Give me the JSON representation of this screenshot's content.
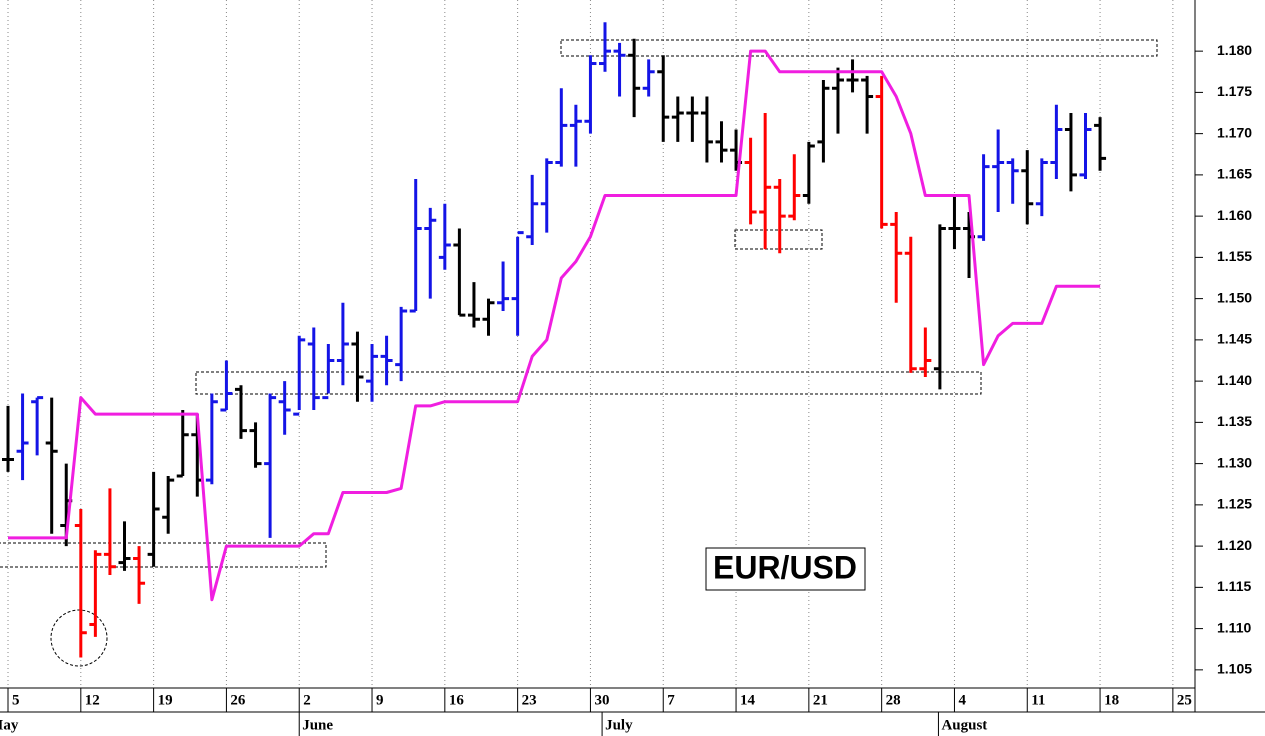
{
  "chart_data": {
    "type": "ohlc",
    "label": "EUR/USD",
    "x": [
      0,
      1,
      2,
      3,
      4,
      5,
      6,
      7,
      8,
      9,
      10,
      11,
      12,
      13,
      14,
      15,
      16,
      17,
      18,
      19,
      20,
      21,
      22,
      23,
      24,
      25,
      26,
      27,
      28,
      29,
      30,
      31,
      32,
      33,
      34,
      35,
      36,
      37,
      38,
      39,
      40,
      41,
      42,
      43,
      44,
      45,
      46,
      47,
      48,
      49,
      50,
      51,
      52,
      53,
      54,
      55,
      56,
      57,
      58,
      59,
      60,
      61,
      62,
      63,
      64,
      65,
      66,
      67,
      68,
      69,
      70,
      71,
      72,
      73,
      74,
      75
    ],
    "open": [
      1.1305,
      1.1315,
      1.1375,
      1.1325,
      1.1225,
      1.1225,
      1.1105,
      1.119,
      1.118,
      1.1185,
      1.119,
      1.1235,
      1.1285,
      1.1335,
      1.128,
      1.1365,
      1.139,
      1.134,
      1.13,
      1.1375,
      1.136,
      1.1445,
      1.138,
      1.1425,
      1.1445,
      1.14,
      1.143,
      1.142,
      1.1485,
      1.1585,
      1.155,
      1.1565,
      1.148,
      1.1475,
      1.1495,
      1.15,
      1.1575,
      1.1615,
      1.1665,
      1.171,
      1.1715,
      1.1785,
      1.18,
      1.1795,
      1.1755,
      1.1775,
      1.172,
      1.1725,
      1.1725,
      1.169,
      1.168,
      1.1665,
      1.1605,
      1.1635,
      1.16,
      1.1625,
      1.169,
      1.1755,
      1.1765,
      1.1765,
      1.1745,
      1.159,
      1.1555,
      1.1415,
      1.1415,
      1.1585,
      1.1585,
      1.1575,
      1.166,
      1.1665,
      1.1655,
      1.1615,
      1.1665,
      1.1705,
      1.165,
      1.171
    ],
    "high": [
      1.137,
      1.1385,
      1.138,
      1.138,
      1.13,
      1.1245,
      1.1195,
      1.127,
      1.123,
      1.12,
      1.129,
      1.1285,
      1.1365,
      1.136,
      1.1385,
      1.1425,
      1.1395,
      1.135,
      1.1385,
      1.14,
      1.1455,
      1.1465,
      1.1445,
      1.1495,
      1.146,
      1.1445,
      1.1455,
      1.149,
      1.1645,
      1.161,
      1.1615,
      1.1585,
      1.152,
      1.15,
      1.1545,
      1.1575,
      1.165,
      1.167,
      1.1755,
      1.1735,
      1.1795,
      1.1835,
      1.181,
      1.1815,
      1.179,
      1.1795,
      1.1745,
      1.1745,
      1.1745,
      1.1715,
      1.1705,
      1.1695,
      1.1725,
      1.1645,
      1.1675,
      1.169,
      1.1765,
      1.178,
      1.179,
      1.177,
      1.177,
      1.1605,
      1.1575,
      1.1465,
      1.159,
      1.1625,
      1.1605,
      1.1675,
      1.1705,
      1.167,
      1.168,
      1.167,
      1.1735,
      1.1725,
      1.1725,
      1.172
    ],
    "low": [
      1.129,
      1.128,
      1.131,
      1.1215,
      1.12,
      1.1065,
      1.109,
      1.1165,
      1.117,
      1.113,
      1.1175,
      1.1215,
      1.1285,
      1.126,
      1.1275,
      1.1365,
      1.133,
      1.1295,
      1.121,
      1.1335,
      1.1365,
      1.1365,
      1.1385,
      1.1395,
      1.1375,
      1.1375,
      1.1395,
      1.14,
      1.1485,
      1.15,
      1.1535,
      1.148,
      1.1465,
      1.1455,
      1.1485,
      1.1455,
      1.1565,
      1.158,
      1.166,
      1.166,
      1.17,
      1.1775,
      1.1745,
      1.172,
      1.1745,
      1.169,
      1.169,
      1.169,
      1.1665,
      1.1665,
      1.1655,
      1.159,
      1.156,
      1.1555,
      1.1595,
      1.1615,
      1.1665,
      1.17,
      1.175,
      1.17,
      1.1585,
      1.1495,
      1.141,
      1.1405,
      1.139,
      1.156,
      1.1525,
      1.157,
      1.1605,
      1.1615,
      1.159,
      1.16,
      1.1645,
      1.163,
      1.1645,
      1.1655
    ],
    "close": [
      1.1305,
      1.1325,
      1.138,
      1.1315,
      1.1255,
      1.1095,
      1.119,
      1.1175,
      1.1185,
      1.1155,
      1.1245,
      1.128,
      1.1335,
      1.128,
      1.1375,
      1.1385,
      1.134,
      1.13,
      1.138,
      1.1365,
      1.145,
      1.138,
      1.1425,
      1.1445,
      1.1405,
      1.143,
      1.1425,
      1.1485,
      1.1585,
      1.1595,
      1.1565,
      1.148,
      1.1475,
      1.1495,
      1.15,
      1.158,
      1.1615,
      1.1665,
      1.171,
      1.1715,
      1.1785,
      1.18,
      1.1795,
      1.1755,
      1.1775,
      1.172,
      1.1725,
      1.1725,
      1.169,
      1.168,
      1.1665,
      1.1605,
      1.1635,
      1.16,
      1.1625,
      1.1685,
      1.1755,
      1.1765,
      1.1765,
      1.1745,
      1.159,
      1.1555,
      1.1415,
      1.1425,
      1.1585,
      1.1585,
      1.1575,
      1.166,
      1.1665,
      1.1655,
      1.1615,
      1.1665,
      1.1705,
      1.165,
      1.1705,
      1.167
    ],
    "colors": [
      "#000000",
      "#1414e6",
      "#1414e6",
      "#000000",
      "#000000",
      "#ff0000",
      "#ff0000",
      "#ff0000",
      "#000000",
      "#ff0000",
      "#000000",
      "#000000",
      "#000000",
      "#000000",
      "#1414e6",
      "#1414e6",
      "#000000",
      "#000000",
      "#1414e6",
      "#1414e6",
      "#1414e6",
      "#1414e6",
      "#1414e6",
      "#1414e6",
      "#000000",
      "#1414e6",
      "#1414e6",
      "#1414e6",
      "#1414e6",
      "#1414e6",
      "#1414e6",
      "#000000",
      "#000000",
      "#000000",
      "#1414e6",
      "#1414e6",
      "#1414e6",
      "#1414e6",
      "#1414e6",
      "#1414e6",
      "#1414e6",
      "#1414e6",
      "#1414e6",
      "#000000",
      "#1414e6",
      "#000000",
      "#000000",
      "#000000",
      "#000000",
      "#000000",
      "#000000",
      "#ff0000",
      "#ff0000",
      "#ff0000",
      "#ff0000",
      "#000000",
      "#000000",
      "#000000",
      "#000000",
      "#000000",
      "#ff0000",
      "#ff0000",
      "#ff0000",
      "#ff0000",
      "#000000",
      "#000000",
      "#000000",
      "#1414e6",
      "#1414e6",
      "#1414e6",
      "#000000",
      "#1414e6",
      "#1414e6",
      "#000000",
      "#1414e6",
      "#000000"
    ],
    "overlay": {
      "color": "#f01ee0",
      "x": [
        0,
        4,
        5,
        6,
        13,
        14,
        15,
        20,
        21,
        22,
        23,
        26,
        27,
        28,
        29,
        30,
        35,
        36,
        37,
        38,
        39,
        40,
        41,
        50,
        51,
        52,
        53,
        60,
        61,
        62,
        63,
        66,
        67,
        68,
        69,
        71,
        72,
        75
      ],
      "values": [
        1.121,
        1.121,
        1.138,
        1.136,
        1.136,
        1.1135,
        1.12,
        1.12,
        1.1215,
        1.1215,
        1.1265,
        1.1265,
        1.127,
        1.137,
        1.137,
        1.1375,
        1.1375,
        1.143,
        1.145,
        1.1525,
        1.1545,
        1.1575,
        1.1625,
        1.1625,
        1.18,
        1.18,
        1.1775,
        1.1775,
        1.1745,
        1.17,
        1.1625,
        1.1625,
        1.142,
        1.1455,
        1.147,
        1.147,
        1.1515,
        1.1515
      ]
    },
    "xlim": [
      -0.55,
      81.52
    ],
    "xticks": [
      {
        "value": 0,
        "label": "5"
      },
      {
        "value": 5,
        "label": "12"
      },
      {
        "value": 10,
        "label": "19"
      },
      {
        "value": 15,
        "label": "26"
      },
      {
        "value": 20,
        "label": "2"
      },
      {
        "value": 25,
        "label": "9"
      },
      {
        "value": 30,
        "label": "16"
      },
      {
        "value": 35,
        "label": "23"
      },
      {
        "value": 40,
        "label": "30"
      },
      {
        "value": 45,
        "label": "7"
      },
      {
        "value": 50,
        "label": "14"
      },
      {
        "value": 55,
        "label": "21"
      },
      {
        "value": 60,
        "label": "28"
      },
      {
        "value": 65,
        "label": "4"
      },
      {
        "value": 70,
        "label": "11"
      },
      {
        "value": 75,
        "label": "18"
      },
      {
        "value": 80,
        "label": "25"
      }
    ],
    "months": [
      {
        "value": -1.5,
        "label": "May"
      },
      {
        "value": 20,
        "label": "June"
      },
      {
        "value": 40.8,
        "label": "July"
      },
      {
        "value": 63.9,
        "label": "August"
      }
    ],
    "ylim": [
      1.1028,
      1.1862
    ],
    "yticks": [
      1.105,
      {
        "value": 1.11,
        "label": "1.110"
      },
      1.115,
      {
        "value": 1.12,
        "label": "1.120"
      },
      1.125,
      {
        "value": 1.13,
        "label": "1.130"
      },
      1.135,
      {
        "value": 1.14,
        "label": "1.140"
      },
      1.145,
      {
        "value": 1.15,
        "label": "1.150"
      },
      1.155,
      {
        "value": 1.16,
        "label": "1.160"
      },
      1.165,
      {
        "value": 1.17,
        "label": "1.170"
      },
      1.175,
      {
        "value": 1.18,
        "label": "1.180"
      }
    ],
    "grid": true
  }
}
